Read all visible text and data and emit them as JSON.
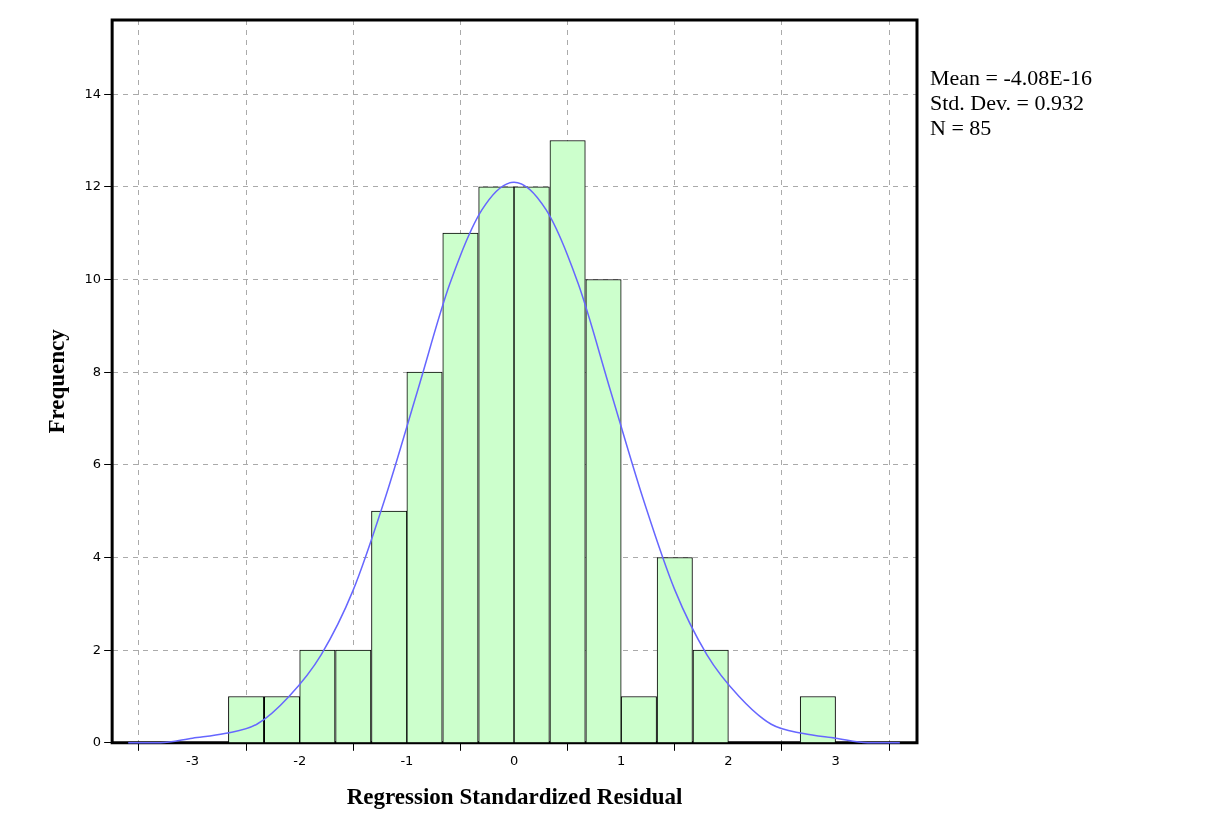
{
  "chart_data": {
    "type": "histogram",
    "xlabel": "Regression Standardized Residual",
    "ylabel": "Frequency",
    "bins": [
      -2.67,
      -2.33,
      -2,
      -1.67,
      -1.33,
      -1,
      -0.67,
      -0.33,
      0,
      0.33,
      0.67,
      1,
      1.33,
      1.67,
      2,
      2.33,
      2.67,
      3
    ],
    "values": [
      1,
      1,
      2,
      2,
      5,
      8,
      11,
      12,
      12,
      13,
      10,
      1,
      4,
      2,
      0,
      0,
      1
    ],
    "color": "#ccffcc",
    "series": [
      {
        "type": "line",
        "color": "#6666ff",
        "x": [
          -3.6,
          -3.3,
          -3,
          -2.7,
          -2.4,
          -2.1,
          -1.8,
          -1.5,
          -1.2,
          -0.9,
          -0.6,
          -0.3,
          0,
          0.3,
          0.6,
          0.9,
          1.2,
          1.5,
          1.8,
          2.1,
          2.4,
          2.7,
          3,
          3.3,
          3.6
        ],
        "values": [
          0,
          0,
          0.1,
          0.2,
          0.4,
          1,
          1.9,
          3.3,
          5.3,
          7.6,
          9.9,
          11.5,
          12.1,
          11.5,
          9.9,
          7.6,
          5.3,
          3.3,
          1.9,
          1,
          0.4,
          0.2,
          0.1,
          0,
          0
        ]
      }
    ],
    "xlim": [
      -3.75,
      3.76
    ],
    "xticks": [
      -3,
      -2,
      -1,
      0,
      1,
      2,
      3
    ],
    "ylim": [
      0,
      15.6
    ],
    "yticks": [
      0,
      2,
      4,
      6,
      8,
      10,
      12,
      14
    ],
    "grid": true,
    "legend": false,
    "marker": "none",
    "annotations": [
      "Mean = -4.08E-16",
      "Std. Dev. = 0.932",
      "N = 85"
    ]
  }
}
